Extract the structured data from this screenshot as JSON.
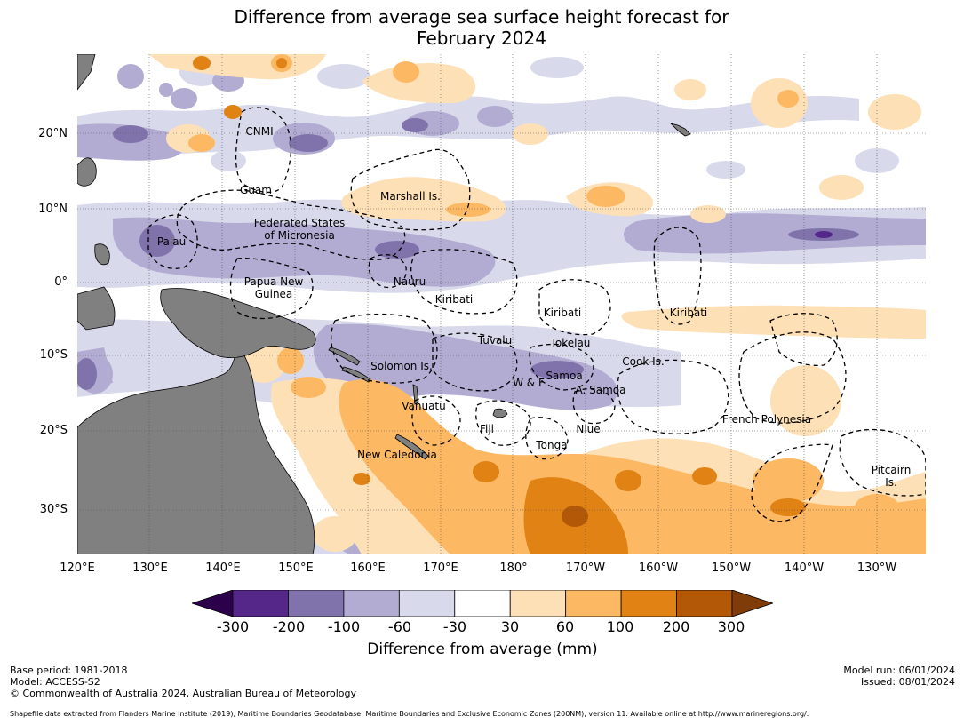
{
  "title": {
    "line1": "Difference from average sea surface height forecast for",
    "line2": "February 2024"
  },
  "map": {
    "lat_labels": [
      "20°N",
      "10°N",
      "0°",
      "10°S",
      "20°S",
      "30°S"
    ],
    "lon_labels": [
      "120°E",
      "130°E",
      "140°E",
      "150°E",
      "160°E",
      "170°E",
      "180°",
      "170°W",
      "160°W",
      "150°W",
      "140°W",
      "130°W"
    ],
    "places": [
      {
        "name": "CNMI",
        "lines": [
          "CNMI"
        ]
      },
      {
        "name": "Guam",
        "lines": [
          "Guam"
        ]
      },
      {
        "name": "Marshall Is.",
        "lines": [
          "Marshall Is."
        ]
      },
      {
        "name": "Federated States of Micronesia",
        "lines": [
          "Federated States",
          "of Micronesia"
        ]
      },
      {
        "name": "Palau",
        "lines": [
          "Palau"
        ]
      },
      {
        "name": "Papua New Guinea",
        "lines": [
          "Papua New",
          "Guinea"
        ]
      },
      {
        "name": "Nauru",
        "lines": [
          "Nauru"
        ]
      },
      {
        "name": "Kiribati (Gilbert)",
        "lines": [
          "Kiribati"
        ]
      },
      {
        "name": "Kiribati (Phoenix)",
        "lines": [
          "Kiribati"
        ]
      },
      {
        "name": "Kiribati (Line)",
        "lines": [
          "Kiribati"
        ]
      },
      {
        "name": "Tuvalu",
        "lines": [
          "Tuvalu"
        ]
      },
      {
        "name": "Tokelau",
        "lines": [
          "Tokelau"
        ]
      },
      {
        "name": "Solomon Is.",
        "lines": [
          "Solomon Is."
        ]
      },
      {
        "name": "Cook Is.",
        "lines": [
          "Cook Is."
        ]
      },
      {
        "name": "Samoa",
        "lines": [
          "Samoa"
        ]
      },
      {
        "name": "W & F",
        "lines": [
          "W & F"
        ]
      },
      {
        "name": "A. Samoa",
        "lines": [
          "A. Samoa"
        ]
      },
      {
        "name": "Vanuatu",
        "lines": [
          "Vanuatu"
        ]
      },
      {
        "name": "Fiji",
        "lines": [
          "Fiji"
        ]
      },
      {
        "name": "Niue",
        "lines": [
          "Niue"
        ]
      },
      {
        "name": "Tonga",
        "lines": [
          "Tonga"
        ]
      },
      {
        "name": "French Polynesia",
        "lines": [
          "French Polynesia"
        ]
      },
      {
        "name": "New Caledonia",
        "lines": [
          "New Caledonia"
        ]
      },
      {
        "name": "Pitcairn Is.",
        "lines": [
          "Pitcairn",
          "Is."
        ]
      }
    ],
    "colors": {
      "land": "#808080",
      "m300": "#2d004b",
      "m200": "#542788",
      "m100": "#8073ac",
      "m60": "#b2abd2",
      "m30": "#d8daeb",
      "zero": "#ffffff",
      "p30": "#fee0b6",
      "p60": "#fdb863",
      "p100": "#e08214",
      "p200": "#b35806",
      "p300": "#7f3b08"
    }
  },
  "colorbar": {
    "ticks": [
      "-300",
      "-200",
      "-100",
      "-60",
      "-30",
      "30",
      "60",
      "100",
      "200",
      "300"
    ],
    "bins": [
      {
        "range": "< -300",
        "color": "#2d004b"
      },
      {
        "range": "-300 to -200",
        "color": "#542788"
      },
      {
        "range": "-200 to -100",
        "color": "#8073ac"
      },
      {
        "range": "-100 to -60",
        "color": "#b2abd2"
      },
      {
        "range": "-60 to -30",
        "color": "#d8daeb"
      },
      {
        "range": "-30 to 30",
        "color": "#ffffff"
      },
      {
        "range": "30 to 60",
        "color": "#fee0b6"
      },
      {
        "range": "60 to 100",
        "color": "#fdb863"
      },
      {
        "range": "100 to 200",
        "color": "#e08214"
      },
      {
        "range": "200 to 300",
        "color": "#b35806"
      },
      {
        "range": "> 300",
        "color": "#7f3b08"
      }
    ],
    "label": "Difference from average (mm)"
  },
  "footer": {
    "base_period": "Base period: 1981-2018",
    "model": "Model: ACCESS-S2",
    "copyright": "© Commonwealth of Australia 2024, Australian Bureau of Meteorology",
    "model_run": "Model run: 06/01/2024",
    "issued": "Issued: 08/01/2024",
    "source": "Shapefile data extracted from Flanders Marine Institute (2019), Maritime Boundaries Geodatabase: Maritime Boundaries and Exclusive Economic Zones (200NM), version 11. Available online at http://www.marineregions.org/."
  }
}
